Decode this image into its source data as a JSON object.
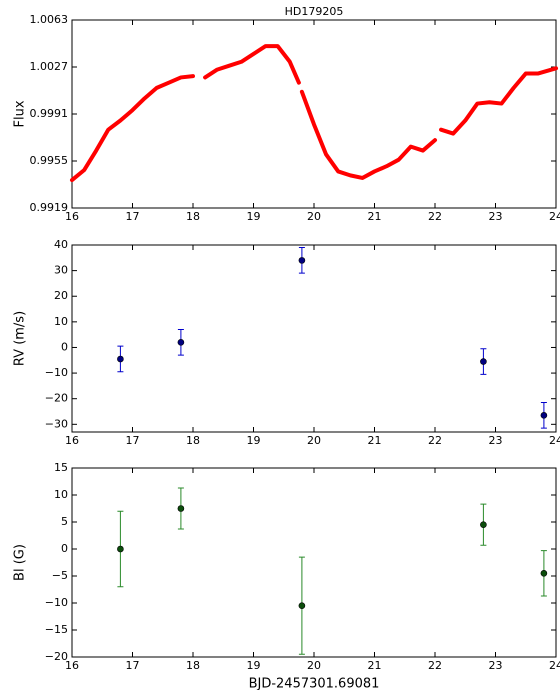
{
  "chart_data": [
    {
      "type": "line",
      "title": "HD179205",
      "ylabel": "Flux",
      "color": "#ff0000",
      "x": [
        16.0,
        16.2,
        16.4,
        16.6,
        16.8,
        17.0,
        17.2,
        17.4,
        17.6,
        17.8,
        18.0,
        null,
        18.2,
        18.4,
        18.6,
        18.8,
        19.0,
        19.2,
        19.4,
        19.6,
        19.75,
        null,
        19.8,
        20.0,
        20.2,
        20.4,
        20.6,
        20.8,
        21.0,
        21.2,
        21.4,
        21.6,
        21.8,
        22.0,
        null,
        22.1,
        22.3,
        22.5,
        22.7,
        22.9,
        23.1,
        23.3,
        23.5,
        23.7,
        24.0
      ],
      "values": [
        0.99404,
        0.9948,
        0.9963,
        0.9979,
        0.9986,
        0.9994,
        1.0003,
        1.0011,
        1.0015,
        1.0019,
        1.002,
        null,
        1.0019,
        1.0025,
        1.0028,
        1.0031,
        1.0037,
        1.0043,
        1.0043,
        1.0031,
        1.0015,
        null,
        1.0008,
        0.9983,
        0.996,
        0.9947,
        0.9944,
        0.9942,
        0.9947,
        0.9951,
        0.9956,
        0.9966,
        0.9963,
        0.9971,
        null,
        0.9979,
        0.9976,
        0.9986,
        0.9999,
        1.0,
        0.9999,
        1.0011,
        1.0022,
        1.0022,
        1.0026
      ],
      "xlim": [
        16,
        24
      ],
      "xticks": [
        16,
        17,
        18,
        19,
        20,
        21,
        22,
        23,
        24
      ],
      "ylim": [
        0.9919,
        1.0063
      ],
      "yticks": [
        0.9919,
        0.9955,
        0.9991,
        1.0027,
        1.0063
      ]
    },
    {
      "type": "errorbar",
      "ylabel": "RV (m/s)",
      "color": "#0000cc",
      "marker_color": "#000080",
      "x": [
        16.8,
        17.8,
        19.8,
        22.8,
        23.8
      ],
      "values": [
        -4.5,
        2,
        34,
        -5.5,
        -26.5
      ],
      "errors": [
        5,
        5,
        5,
        5,
        5
      ],
      "xlim": [
        16,
        24
      ],
      "xticks": [
        16,
        17,
        18,
        19,
        20,
        21,
        22,
        23,
        24
      ],
      "ylim": [
        -33,
        40
      ],
      "yticks": [
        {
          "value": -30,
          "label": "−30"
        },
        {
          "value": -20,
          "label": "−20"
        },
        {
          "value": -10,
          "label": "−10"
        },
        0,
        10,
        20,
        30,
        40
      ]
    },
    {
      "type": "errorbar",
      "ylabel": "Bl (G)",
      "xlabel": "BJD-2457301.69081",
      "color": "#2a8a2a",
      "marker_color": "#0b4d0b",
      "x": [
        16.8,
        17.8,
        19.8,
        22.8,
        23.8
      ],
      "values": [
        0,
        7.5,
        -10.5,
        4.5,
        -4.5
      ],
      "errors": [
        7,
        3.8,
        9,
        3.8,
        4.2
      ],
      "xlim": [
        16,
        24
      ],
      "xticks": [
        16,
        17,
        18,
        19,
        20,
        21,
        22,
        23,
        24
      ],
      "ylim": [
        -20,
        15
      ],
      "yticks": [
        {
          "value": -20,
          "label": "−20"
        },
        {
          "value": -15,
          "label": "−15"
        },
        {
          "value": -10,
          "label": "−10"
        },
        {
          "value": -5,
          "label": "−5"
        },
        0,
        5,
        10,
        15
      ]
    }
  ]
}
